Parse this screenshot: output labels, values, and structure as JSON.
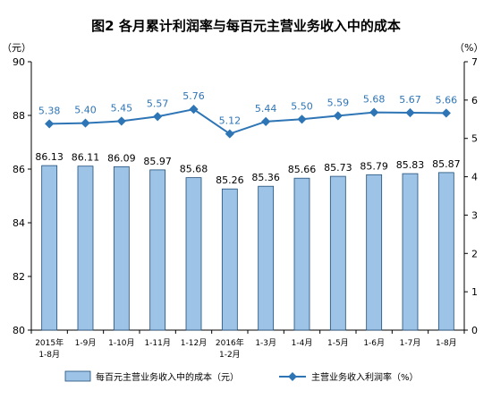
{
  "chart_data": {
    "type": "bar+line",
    "title": "图2  各月累计利润率与每百元主营业务收入中的成本",
    "left_unit": "（元）",
    "right_unit": "（%）",
    "categories": [
      [
        "2015年",
        "1-8月"
      ],
      [
        "1-9月"
      ],
      [
        "1-10月"
      ],
      [
        "1-11月"
      ],
      [
        "1-12月"
      ],
      [
        "2016年",
        "1-2月"
      ],
      [
        "1-3月"
      ],
      [
        "1-4月"
      ],
      [
        "1-5月"
      ],
      [
        "1-6月"
      ],
      [
        "1-7月"
      ],
      [
        "1-8月"
      ]
    ],
    "left_axis": {
      "min": 80,
      "max": 90,
      "ticks": [
        80,
        82,
        84,
        86,
        88,
        90
      ]
    },
    "right_axis": {
      "min": 0,
      "max": 7,
      "ticks": [
        0,
        1,
        2,
        3,
        4,
        5,
        6,
        7
      ]
    },
    "series": [
      {
        "name": "每百元主营业务收入中的成本（元）",
        "type": "bar",
        "axis": "left",
        "color": "#9dc3e6",
        "labels": [
          "86.13",
          "86.11",
          "86.09",
          "85.97",
          "85.68",
          "85.26",
          "85.36",
          "85.66",
          "85.73",
          "85.79",
          "85.83",
          "85.87"
        ],
        "values": [
          86.13,
          86.11,
          86.09,
          85.97,
          85.68,
          85.26,
          85.36,
          85.66,
          85.73,
          85.79,
          85.83,
          85.87
        ]
      },
      {
        "name": "主营业务收入利润率（%）",
        "type": "line",
        "axis": "right",
        "color": "#2e75b6",
        "labels": [
          "5.38",
          "5.40",
          "5.45",
          "5.57",
          "5.76",
          "5.12",
          "5.44",
          "5.50",
          "5.59",
          "5.68",
          "5.67",
          "5.66"
        ],
        "values": [
          5.38,
          5.4,
          5.45,
          5.57,
          5.76,
          5.12,
          5.44,
          5.5,
          5.59,
          5.68,
          5.67,
          5.66
        ]
      }
    ],
    "legend_position": "bottom",
    "grid": false
  }
}
